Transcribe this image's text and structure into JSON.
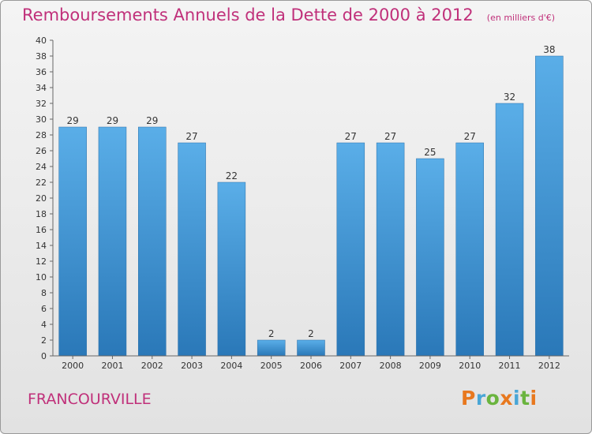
{
  "chart_data": {
    "type": "bar",
    "title": "Remboursements Annuels de la Dette de 2000 à 2012",
    "subtitle": "(en milliers d'€)",
    "categories": [
      "2000",
      "2001",
      "2002",
      "2003",
      "2004",
      "2005",
      "2006",
      "2007",
      "2008",
      "2009",
      "2010",
      "2011",
      "2012"
    ],
    "values": [
      29,
      29,
      29,
      27,
      22,
      2,
      2,
      27,
      27,
      25,
      27,
      32,
      38
    ],
    "ylim": [
      0,
      40
    ],
    "yticks": [
      0,
      2,
      4,
      6,
      8,
      10,
      12,
      14,
      16,
      18,
      20,
      22,
      24,
      26,
      28,
      30,
      32,
      34,
      36,
      38,
      40
    ],
    "xlabel": "",
    "ylabel": "",
    "grid": false,
    "bar_color": "#3f94d4"
  },
  "footer": {
    "commune": "FRANCOURVILLE",
    "brand": "Proxiti",
    "brand_colors": [
      "#e8781e",
      "#49a6d6",
      "#6ab43e",
      "#e8781e",
      "#49a6d6",
      "#6ab43e",
      "#e8781e"
    ]
  },
  "colors": {
    "title": "#c0307a"
  }
}
